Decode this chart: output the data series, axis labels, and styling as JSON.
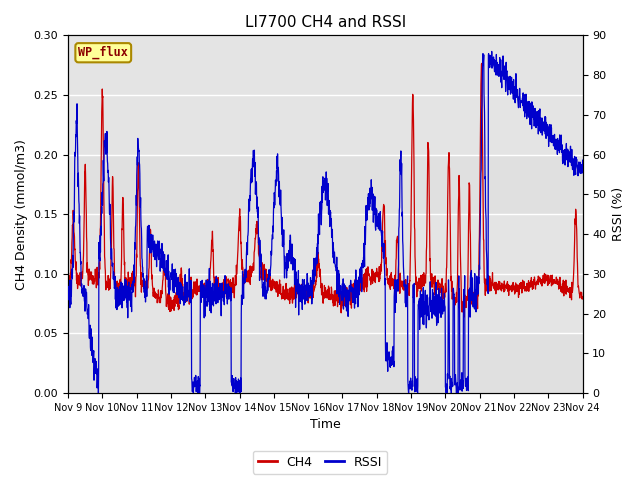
{
  "title": "LI7700 CH4 and RSSI",
  "xlabel": "Time",
  "ylabel_left": "CH4 Density (mmol/m3)",
  "ylabel_right": "RSSI (%)",
  "ylim_left": [
    0.0,
    0.3
  ],
  "ylim_right": [
    0,
    90
  ],
  "xlim": [
    0,
    15
  ],
  "xtick_labels": [
    "Nov 9",
    "Nov 10",
    "Nov 11",
    "Nov 12",
    "Nov 13",
    "Nov 14",
    "Nov 15",
    "Nov 16",
    "Nov 17",
    "Nov 18",
    "Nov 19",
    "Nov 20",
    "Nov 21",
    "Nov 22",
    "Nov 23",
    "Nov 24"
  ],
  "xtick_positions": [
    0,
    1,
    2,
    3,
    4,
    5,
    6,
    7,
    8,
    9,
    10,
    11,
    12,
    13,
    14,
    15
  ],
  "ch4_color": "#cc0000",
  "rssi_color": "#0000cc",
  "background_color": "#e0e0e0",
  "wp_flux_label": "WP_flux",
  "wp_flux_bg": "#ffff99",
  "wp_flux_border": "#aa8800",
  "legend_ch4": "CH4",
  "legend_rssi": "RSSI",
  "title_fontsize": 11,
  "axis_label_fontsize": 9,
  "tick_fontsize": 8
}
